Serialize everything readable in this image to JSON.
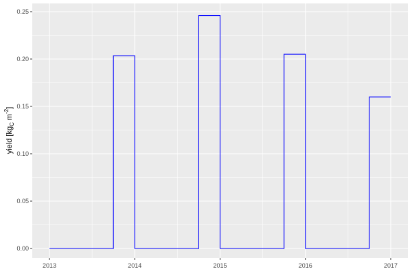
{
  "chart_data": {
    "type": "line",
    "style": "step",
    "title": "",
    "xlabel": "",
    "ylabel": "yield [kg",
    "ylabel_subscript": "C",
    "ylabel_mid": " m",
    "ylabel_superscript": "-2",
    "ylabel_end": "]",
    "xlim": [
      2013,
      2017
    ],
    "ylim": [
      0,
      0.25
    ],
    "x_ticks": [
      2013,
      2014,
      2015,
      2016,
      2017
    ],
    "x_tick_labels": [
      "2013",
      "2014",
      "2015",
      "2016",
      "2017"
    ],
    "y_ticks": [
      0,
      0.05,
      0.1,
      0.15,
      0.2,
      0.25
    ],
    "y_tick_labels": [
      "0.00",
      "0.05",
      "0.10",
      "0.15",
      "0.20",
      "0.25"
    ],
    "grid": true,
    "series": [
      {
        "color": "#0000FF",
        "x": [
          2013,
          2013.75,
          2014,
          2014.75,
          2015,
          2015.75,
          2016,
          2016.75,
          2017
        ],
        "y": [
          0,
          0.2035,
          0,
          0.246,
          0,
          0.205,
          0,
          0.16,
          0.16
        ]
      }
    ],
    "panel_background": "#EBEBEB",
    "grid_color": "#FFFFFF"
  }
}
